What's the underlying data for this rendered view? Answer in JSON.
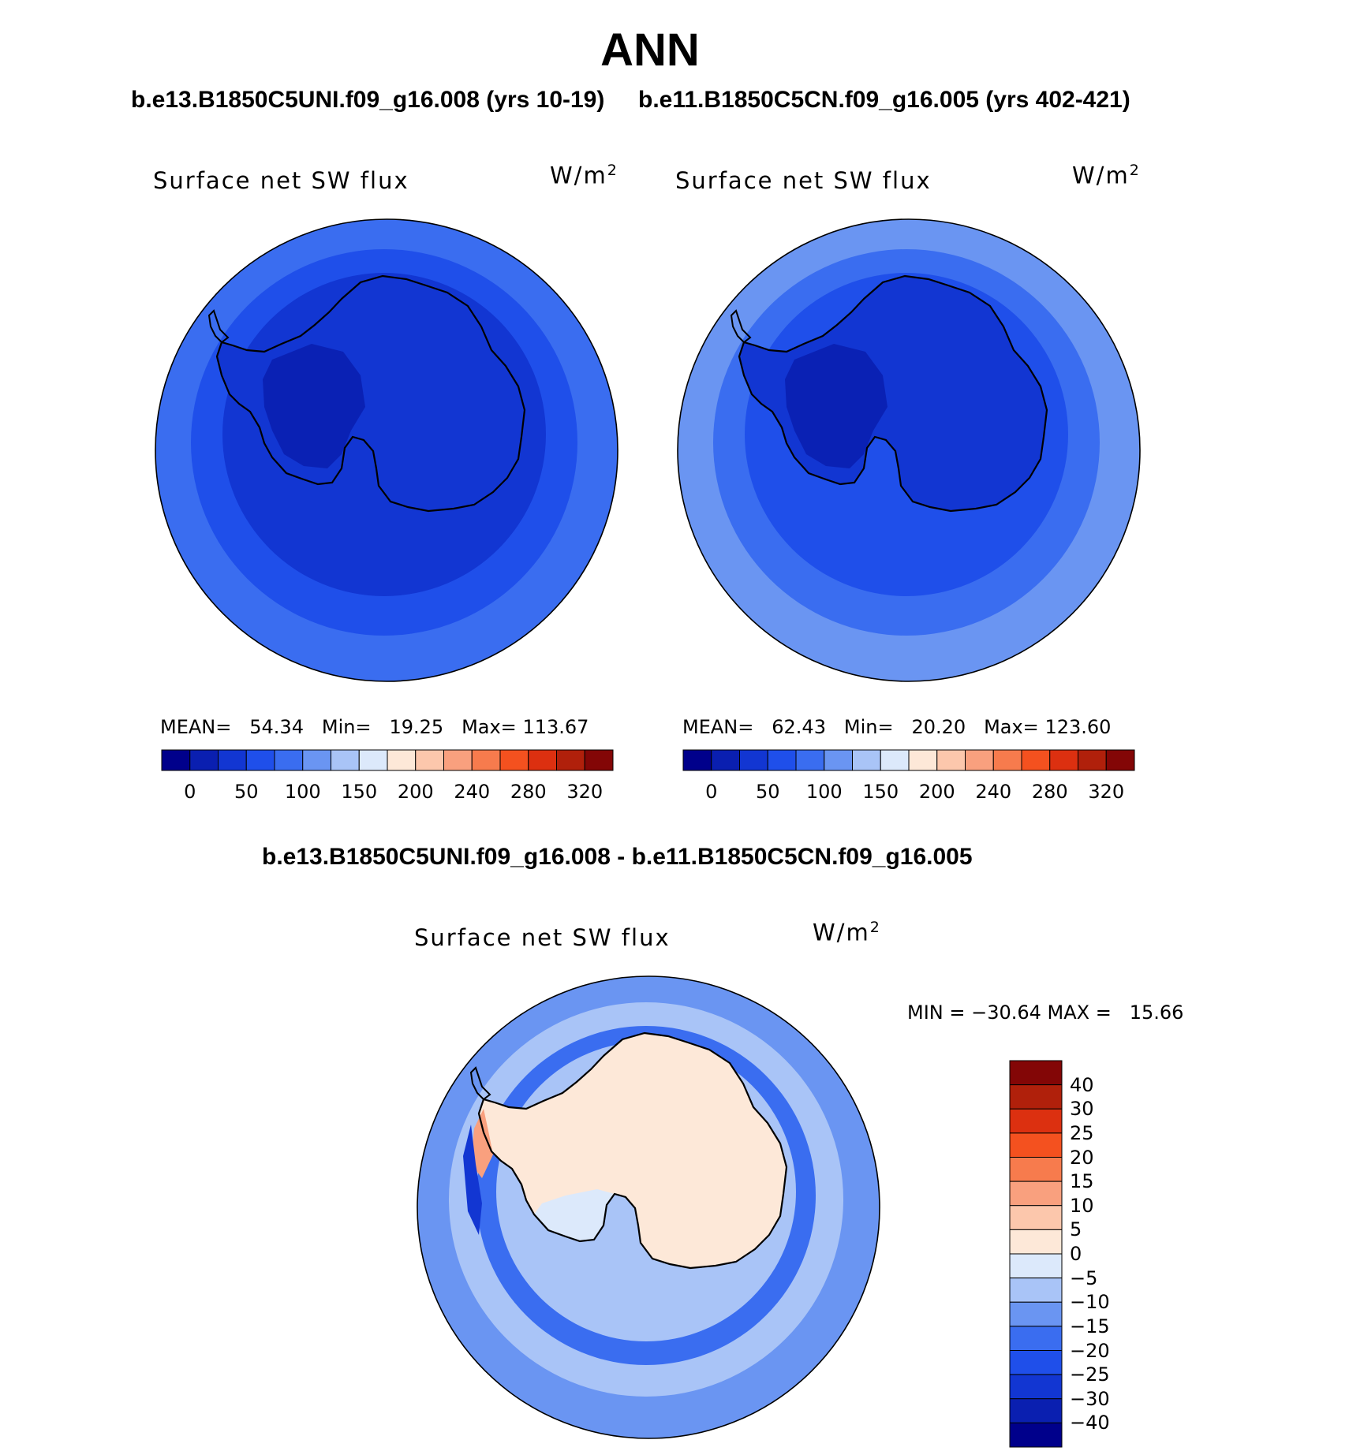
{
  "page_title": "ANN",
  "case1_title": "b.e13.B1850C5UNI.f09_g16.008 (yrs 10-19)",
  "case2_title": "b.e11.B1850C5CN.f09_g16.005 (yrs 402-421)",
  "diff_title": "b.e13.B1850C5UNI.f09_g16.008 - b.e11.B1850C5CN.f09_g16.005",
  "colors": {
    "abs_scale": [
      "#00008b",
      "#0a1fb0",
      "#1236d2",
      "#1f4fea",
      "#3a6df0",
      "#6a95f2",
      "#a9c4f7",
      "#dce9fb",
      "#fde8d8",
      "#fcc7ac",
      "#f9a07e",
      "#f77b4d",
      "#f4511f",
      "#dc3010",
      "#b0200b",
      "#830606"
    ],
    "diff_scale": [
      "#00008b",
      "#0a1fb0",
      "#1236d2",
      "#1f4fea",
      "#3a6df0",
      "#6a95f2",
      "#a9c4f7",
      "#dce9fb",
      "#fde8d8",
      "#fcc7ac",
      "#f9a07e",
      "#f77b4d",
      "#f4511f",
      "#dc3010",
      "#b0200b",
      "#830606"
    ]
  },
  "chart_data": [
    {
      "type": "heatmap",
      "projection": "south-polar",
      "variable": "Surface net SW flux",
      "units": "W/m",
      "units_exponent": "2",
      "stats": {
        "mean_label": "MEAN=",
        "mean": "54.34",
        "min_label": "Min=",
        "min": "19.25",
        "max_label": "Max=",
        "max": "113.67"
      },
      "colorbar_ticks": [
        "0",
        "50",
        "100",
        "150",
        "200",
        "240",
        "280",
        "320"
      ],
      "regions": {
        "outer_ring": 4,
        "mid_ring": 3,
        "inner_ring": 2,
        "continent": 2,
        "interior": 1
      }
    },
    {
      "type": "heatmap",
      "projection": "south-polar",
      "variable": "Surface net SW flux",
      "units": "W/m",
      "units_exponent": "2",
      "stats": {
        "mean_label": "MEAN=",
        "mean": "62.43",
        "min_label": "Min=",
        "min": "20.20",
        "max_label": "Max=",
        "max": "123.60"
      },
      "colorbar_ticks": [
        "0",
        "50",
        "100",
        "150",
        "200",
        "240",
        "280",
        "320"
      ],
      "regions": {
        "outer_ring": 5,
        "mid_ring": 4,
        "inner_ring": 3,
        "continent": 2,
        "interior": 1
      }
    },
    {
      "type": "heatmap",
      "projection": "south-polar",
      "variable": "Surface net SW flux",
      "units": "W/m",
      "units_exponent": "2",
      "stats_text": "MIN = −30.64 MAX =   15.66",
      "colorbar_ticks": [
        "40",
        "30",
        "25",
        "20",
        "15",
        "10",
        "5",
        "0",
        "−5",
        "−10",
        "−15",
        "−20",
        "−25",
        "−30",
        "−40"
      ],
      "regions": {
        "outer_ring": 5,
        "mid_ring": 6,
        "inner_ring": 4,
        "continent": 8,
        "interior": 7,
        "peninsula_west": 10
      }
    }
  ]
}
